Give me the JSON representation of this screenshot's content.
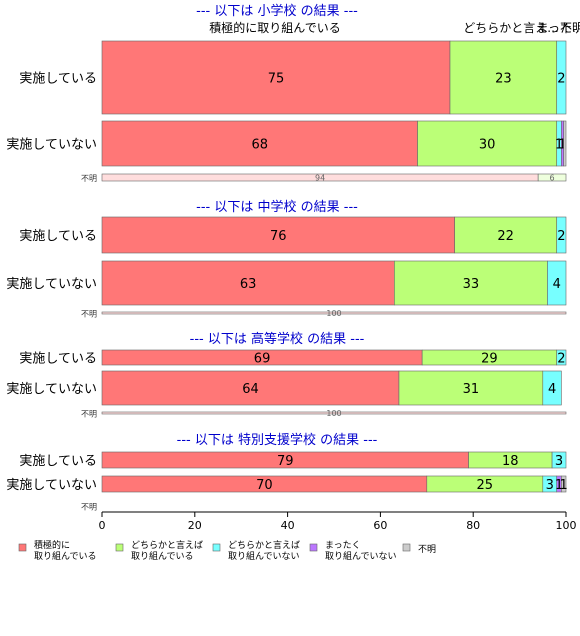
{
  "chart_data": {
    "type": "bar",
    "orientation": "horizontal",
    "stacked": true,
    "xlim": [
      0,
      100
    ],
    "x_ticks": [
      "0",
      "20",
      "40",
      "60",
      "80",
      "100"
    ],
    "column_labels": [
      "積極的に取り組んでいる",
      "どちらかと言え...",
      "まった...",
      "不明"
    ],
    "legend": {
      "placement": "bottom",
      "items": [
        {
          "line1": "積極的に",
          "line2": "取り組んでいる",
          "color": "#ff7777"
        },
        {
          "line1": "どちらかと言えば",
          "line2": "取り組んでいる",
          "color": "#bbff77"
        },
        {
          "line1": "どちらかと言えば",
          "line2": "取り組んでいない",
          "color": "#77ffff"
        },
        {
          "line1": "まったく",
          "line2": "取り組んでいない",
          "color": "#bb77ff"
        },
        {
          "line1": "不明",
          "line2": "",
          "color": "#cccccc"
        }
      ]
    },
    "panels": [
      {
        "title": "--- 以下は 小学校 の結果 ---",
        "rows": [
          {
            "label": "実施している",
            "values": [
              75,
              23,
              2,
              0,
              0
            ],
            "labels": [
              "75",
              "23",
              "2",
              "",
              ""
            ]
          },
          {
            "label": "実施していない",
            "values": [
              68,
              30,
              1,
              0.5,
              0.5
            ],
            "labels": [
              "68",
              "30",
              "1",
              "1",
              ""
            ]
          },
          {
            "label": "不明",
            "values": [
              94,
              6
            ],
            "labels": [
              "94",
              "6"
            ],
            "minor": true
          }
        ]
      },
      {
        "title": "--- 以下は 中学校 の結果 ---",
        "rows": [
          {
            "label": "実施している",
            "values": [
              76,
              22,
              2,
              0,
              0
            ],
            "labels": [
              "76",
              "22",
              "2",
              "",
              ""
            ]
          },
          {
            "label": "実施していない",
            "values": [
              63,
              33,
              4,
              0,
              0
            ],
            "labels": [
              "63",
              "33",
              "4",
              "",
              ""
            ]
          },
          {
            "label": "不明",
            "values": [
              100
            ],
            "labels": [
              "100"
            ],
            "minor": true
          }
        ]
      },
      {
        "title": "--- 以下は 高等学校 の結果 ---",
        "rows": [
          {
            "label": "実施している",
            "values": [
              69,
              29,
              2,
              0,
              0
            ],
            "labels": [
              "69",
              "29",
              "2",
              "",
              ""
            ]
          },
          {
            "label": "実施していない",
            "values": [
              64,
              31,
              4,
              0,
              0
            ],
            "labels": [
              "64",
              "31",
              "4",
              "",
              ""
            ]
          },
          {
            "label": "不明",
            "values": [
              100
            ],
            "labels": [
              "100"
            ],
            "minor": true
          }
        ]
      },
      {
        "title": "--- 以下は 特別支援学校 の結果 ---",
        "rows": [
          {
            "label": "実施している",
            "values": [
              79,
              18,
              3,
              0,
              0
            ],
            "labels": [
              "79",
              "18",
              "3",
              "",
              ""
            ]
          },
          {
            "label": "実施していない",
            "values": [
              70,
              25,
              3,
              1,
              1
            ],
            "labels": [
              "70",
              "25",
              "3",
              "1",
              "1"
            ]
          },
          {
            "label": "不明",
            "values": [],
            "labels": [],
            "minor": true
          }
        ]
      }
    ]
  }
}
